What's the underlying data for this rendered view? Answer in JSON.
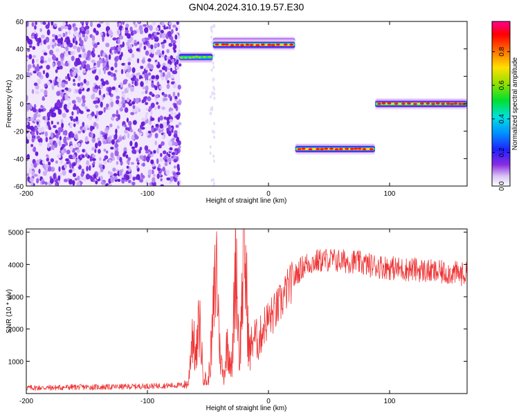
{
  "chart_data": [
    {
      "type": "heatmap",
      "title": "GN04.2024.310.19.57.E30",
      "xlabel": "Height of straight line (km)",
      "ylabel": "Frequency (Hz)",
      "xlim": [
        -200,
        164
      ],
      "ylim": [
        -60,
        60
      ],
      "x_ticks": [
        "-200",
        "-100",
        "0",
        "100"
      ],
      "y_ticks": [
        "60",
        "40",
        "20",
        "0",
        "-20",
        "-40",
        "-60"
      ],
      "colorbar": {
        "label": "Normalized spectral amplitude",
        "range": [
          0,
          0.98
        ],
        "ticks": [
          "0.0",
          "0.2",
          "0.4",
          "0.6",
          "0.8"
        ]
      },
      "noise_region": {
        "x_range": [
          -200,
          -73
        ],
        "freq_range": [
          -60,
          60
        ],
        "amplitude": 0.05
      },
      "tones": [
        {
          "x_start": -74,
          "x_end": -46,
          "frequency": 34,
          "amplitude": 0.45
        },
        {
          "x_start": -46,
          "x_end": 22,
          "frequency": 45,
          "amplitude": 0.85
        },
        {
          "x_start": -46,
          "x_end": 22,
          "frequency": 43,
          "amplitude": 0.8
        },
        {
          "x_start": 22,
          "x_end": 88,
          "frequency": -33,
          "amplitude": 0.95
        },
        {
          "x_start": 88,
          "x_end": 164,
          "frequency": 0,
          "amplitude": 0.95
        }
      ]
    },
    {
      "type": "line",
      "xlabel": "Height of straight line (km)",
      "ylabel": "SNR (10 * v/v)",
      "xlim": [
        -200,
        164
      ],
      "ylim": [
        0,
        5100
      ],
      "x_ticks": [
        "-200",
        "-100",
        "0",
        "100"
      ],
      "y_ticks": [
        "1000",
        "2000",
        "3000",
        "4000",
        "5000"
      ],
      "series": [
        {
          "color": "#ee3333",
          "x": [
            -200,
            -180,
            -160,
            -140,
            -120,
            -100,
            -80,
            -70,
            -66,
            -63,
            -60,
            -57,
            -54,
            -50,
            -47,
            -43,
            -40,
            -37,
            -34,
            -30,
            -27,
            -24,
            -20,
            -16,
            -12,
            -8,
            -4,
            0,
            5,
            10,
            15,
            20,
            25,
            30,
            40,
            50,
            60,
            70,
            80,
            90,
            100,
            110,
            120,
            130,
            140,
            150,
            160,
            164
          ],
          "values": [
            180,
            180,
            200,
            200,
            210,
            230,
            250,
            260,
            320,
            2000,
            1000,
            2300,
            600,
            300,
            1500,
            4100,
            1200,
            500,
            1600,
            700,
            4800,
            900,
            4800,
            1200,
            1800,
            1600,
            2100,
            2300,
            2500,
            2800,
            3200,
            3500,
            3800,
            4000,
            4100,
            4150,
            4100,
            4100,
            4000,
            3950,
            3900,
            3850,
            3850,
            3800,
            3750,
            3750,
            3700,
            3700
          ]
        }
      ]
    }
  ],
  "colors": {
    "line": "#ee3333",
    "noise": "#7a30e0",
    "background": "#ffffff",
    "axis": "#000000"
  }
}
